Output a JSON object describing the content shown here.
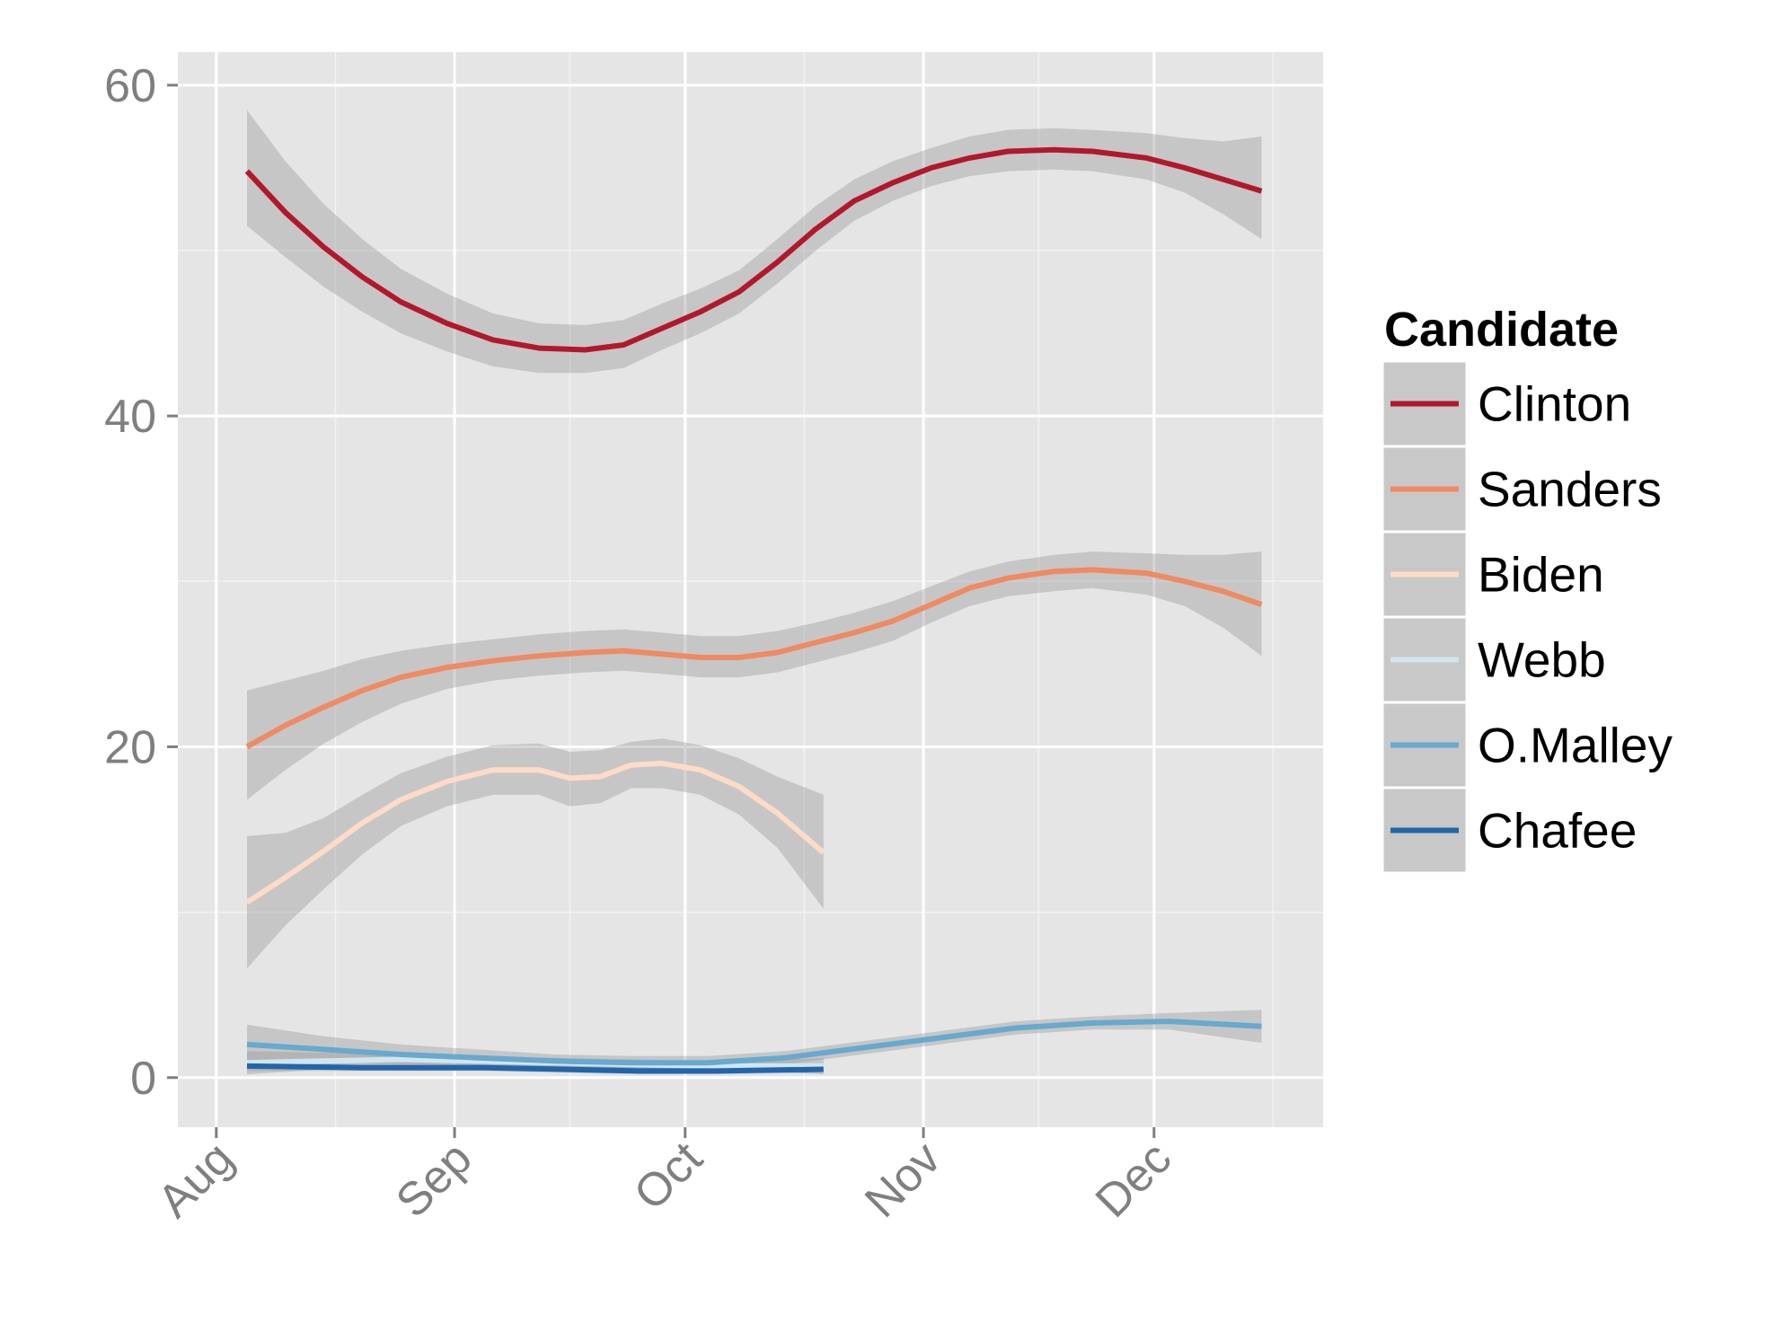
{
  "chart_data": {
    "type": "line",
    "title": "",
    "xlabel": "",
    "ylabel": "",
    "x_ticks": [
      {
        "label": "Aug",
        "date": "2015-08-01"
      },
      {
        "label": "Sep",
        "date": "2015-09-01"
      },
      {
        "label": "Oct",
        "date": "2015-10-01"
      },
      {
        "label": "Nov",
        "date": "2015-11-01"
      },
      {
        "label": "Dec",
        "date": "2015-12-01"
      }
    ],
    "y_ticks": [
      0,
      20,
      40,
      60
    ],
    "xlim": [
      "2015-07-27",
      "2015-12-23"
    ],
    "ylim": [
      -3,
      62
    ],
    "grid": true,
    "legend": {
      "title": "Candidate",
      "position": "right"
    },
    "series": [
      {
        "name": "Clinton",
        "color": "#b2182b",
        "points": [
          [
            "2015-08-05",
            54.8
          ],
          [
            "2015-08-10",
            52.3
          ],
          [
            "2015-08-15",
            50.2
          ],
          [
            "2015-08-20",
            48.4
          ],
          [
            "2015-08-25",
            46.9
          ],
          [
            "2015-08-31",
            45.6
          ],
          [
            "2015-09-06",
            44.6
          ],
          [
            "2015-09-12",
            44.1
          ],
          [
            "2015-09-18",
            44.0
          ],
          [
            "2015-09-23",
            44.3
          ],
          [
            "2015-09-28",
            45.3
          ],
          [
            "2015-10-03",
            46.3
          ],
          [
            "2015-10-08",
            47.5
          ],
          [
            "2015-10-13",
            49.3
          ],
          [
            "2015-10-18",
            51.3
          ],
          [
            "2015-10-23",
            53.0
          ],
          [
            "2015-10-28",
            54.1
          ],
          [
            "2015-11-02",
            55.0
          ],
          [
            "2015-11-07",
            55.6
          ],
          [
            "2015-11-12",
            56.0
          ],
          [
            "2015-11-18",
            56.1
          ],
          [
            "2015-11-23",
            56.0
          ],
          [
            "2015-11-30",
            55.6
          ],
          [
            "2015-12-05",
            55.0
          ],
          [
            "2015-12-10",
            54.3
          ],
          [
            "2015-12-15",
            53.6
          ]
        ],
        "band": [
          [
            51.5,
            58.5
          ],
          [
            49.6,
            55.4
          ],
          [
            47.8,
            52.8
          ],
          [
            46.3,
            50.7
          ],
          [
            45.0,
            48.9
          ],
          [
            43.9,
            47.4
          ],
          [
            43.0,
            46.2
          ],
          [
            42.6,
            45.6
          ],
          [
            42.6,
            45.5
          ],
          [
            42.9,
            45.8
          ],
          [
            44.0,
            46.8
          ],
          [
            45.0,
            47.7
          ],
          [
            46.2,
            48.8
          ],
          [
            48.0,
            50.7
          ],
          [
            50.0,
            52.7
          ],
          [
            51.8,
            54.3
          ],
          [
            53.0,
            55.4
          ],
          [
            53.9,
            56.2
          ],
          [
            54.5,
            56.9
          ],
          [
            54.8,
            57.3
          ],
          [
            54.9,
            57.4
          ],
          [
            54.8,
            57.3
          ],
          [
            54.3,
            57.1
          ],
          [
            53.5,
            56.8
          ],
          [
            52.2,
            56.6
          ],
          [
            50.7,
            56.9
          ]
        ]
      },
      {
        "name": "Sanders",
        "color": "#ef8a62",
        "points": [
          [
            "2015-08-05",
            20.0
          ],
          [
            "2015-08-10",
            21.3
          ],
          [
            "2015-08-15",
            22.4
          ],
          [
            "2015-08-20",
            23.4
          ],
          [
            "2015-08-25",
            24.2
          ],
          [
            "2015-08-31",
            24.8
          ],
          [
            "2015-09-06",
            25.2
          ],
          [
            "2015-09-12",
            25.5
          ],
          [
            "2015-09-18",
            25.7
          ],
          [
            "2015-09-23",
            25.8
          ],
          [
            "2015-09-28",
            25.6
          ],
          [
            "2015-10-03",
            25.4
          ],
          [
            "2015-10-08",
            25.4
          ],
          [
            "2015-10-13",
            25.7
          ],
          [
            "2015-10-18",
            26.3
          ],
          [
            "2015-10-23",
            26.9
          ],
          [
            "2015-10-28",
            27.6
          ],
          [
            "2015-11-02",
            28.6
          ],
          [
            "2015-11-07",
            29.6
          ],
          [
            "2015-11-12",
            30.2
          ],
          [
            "2015-11-18",
            30.6
          ],
          [
            "2015-11-23",
            30.7
          ],
          [
            "2015-11-30",
            30.5
          ],
          [
            "2015-12-05",
            30.0
          ],
          [
            "2015-12-10",
            29.4
          ],
          [
            "2015-12-15",
            28.6
          ]
        ],
        "band": [
          [
            16.8,
            23.4
          ],
          [
            18.6,
            24.0
          ],
          [
            20.2,
            24.6
          ],
          [
            21.5,
            25.3
          ],
          [
            22.6,
            25.8
          ],
          [
            23.5,
            26.2
          ],
          [
            24.0,
            26.5
          ],
          [
            24.3,
            26.8
          ],
          [
            24.5,
            27.0
          ],
          [
            24.6,
            27.1
          ],
          [
            24.4,
            26.9
          ],
          [
            24.2,
            26.7
          ],
          [
            24.2,
            26.7
          ],
          [
            24.5,
            27.0
          ],
          [
            25.1,
            27.5
          ],
          [
            25.7,
            28.1
          ],
          [
            26.4,
            28.8
          ],
          [
            27.5,
            29.7
          ],
          [
            28.5,
            30.6
          ],
          [
            29.1,
            31.2
          ],
          [
            29.4,
            31.6
          ],
          [
            29.6,
            31.8
          ],
          [
            29.2,
            31.7
          ],
          [
            28.5,
            31.6
          ],
          [
            27.2,
            31.6
          ],
          [
            25.5,
            31.8
          ]
        ]
      },
      {
        "name": "Biden",
        "color": "#fddbc7",
        "points": [
          [
            "2015-08-05",
            10.6
          ],
          [
            "2015-08-10",
            12.1
          ],
          [
            "2015-08-15",
            13.7
          ],
          [
            "2015-08-20",
            15.4
          ],
          [
            "2015-08-25",
            16.8
          ],
          [
            "2015-08-31",
            17.9
          ],
          [
            "2015-09-06",
            18.6
          ],
          [
            "2015-09-12",
            18.6
          ],
          [
            "2015-09-16",
            18.1
          ],
          [
            "2015-09-20",
            18.2
          ],
          [
            "2015-09-24",
            18.9
          ],
          [
            "2015-09-28",
            19.0
          ],
          [
            "2015-10-03",
            18.6
          ],
          [
            "2015-10-08",
            17.6
          ],
          [
            "2015-10-13",
            16.0
          ],
          [
            "2015-10-19",
            13.6
          ]
        ],
        "band": [
          [
            6.6,
            14.6
          ],
          [
            9.2,
            14.8
          ],
          [
            11.4,
            15.7
          ],
          [
            13.5,
            17.1
          ],
          [
            15.2,
            18.4
          ],
          [
            16.4,
            19.4
          ],
          [
            17.1,
            20.1
          ],
          [
            17.1,
            20.2
          ],
          [
            16.4,
            19.7
          ],
          [
            16.6,
            19.8
          ],
          [
            17.5,
            20.3
          ],
          [
            17.5,
            20.5
          ],
          [
            17.1,
            20.1
          ],
          [
            15.9,
            19.3
          ],
          [
            13.9,
            18.2
          ],
          [
            10.2,
            17.1
          ]
        ]
      },
      {
        "name": "Webb",
        "color": "#d1e5f0",
        "points": [
          [
            "2015-08-05",
            0.9
          ],
          [
            "2015-08-15",
            1.0
          ],
          [
            "2015-08-25",
            1.1
          ],
          [
            "2015-09-04",
            1.0
          ],
          [
            "2015-09-14",
            0.9
          ],
          [
            "2015-09-24",
            0.8
          ],
          [
            "2015-10-04",
            0.7
          ],
          [
            "2015-10-14",
            0.7
          ],
          [
            "2015-10-19",
            0.7
          ]
        ],
        "band": [
          [
            0.2,
            1.6
          ],
          [
            0.5,
            1.5
          ],
          [
            0.7,
            1.5
          ],
          [
            0.7,
            1.3
          ],
          [
            0.6,
            1.2
          ],
          [
            0.5,
            1.1
          ],
          [
            0.4,
            1.0
          ],
          [
            0.3,
            1.1
          ],
          [
            0.2,
            1.2
          ]
        ]
      },
      {
        "name": "O.Malley",
        "color": "#67a9cf",
        "points": [
          [
            "2015-08-05",
            2.0
          ],
          [
            "2015-08-15",
            1.7
          ],
          [
            "2015-08-25",
            1.4
          ],
          [
            "2015-09-04",
            1.2
          ],
          [
            "2015-09-14",
            1.0
          ],
          [
            "2015-09-24",
            0.9
          ],
          [
            "2015-10-04",
            0.9
          ],
          [
            "2015-10-14",
            1.2
          ],
          [
            "2015-10-24",
            1.8
          ],
          [
            "2015-11-03",
            2.4
          ],
          [
            "2015-11-13",
            3.0
          ],
          [
            "2015-11-23",
            3.3
          ],
          [
            "2015-12-03",
            3.4
          ],
          [
            "2015-12-15",
            3.1
          ]
        ],
        "band": [
          [
            0.8,
            3.2
          ],
          [
            0.9,
            2.5
          ],
          [
            0.8,
            2.0
          ],
          [
            0.7,
            1.7
          ],
          [
            0.6,
            1.4
          ],
          [
            0.5,
            1.3
          ],
          [
            0.5,
            1.3
          ],
          [
            0.8,
            1.6
          ],
          [
            1.4,
            2.2
          ],
          [
            2.0,
            2.8
          ],
          [
            2.6,
            3.4
          ],
          [
            2.9,
            3.7
          ],
          [
            2.9,
            3.9
          ],
          [
            2.1,
            4.1
          ]
        ]
      },
      {
        "name": "Chafee",
        "color": "#2166ac",
        "points": [
          [
            "2015-08-05",
            0.7
          ],
          [
            "2015-08-20",
            0.6
          ],
          [
            "2015-09-05",
            0.6
          ],
          [
            "2015-09-15",
            0.5
          ],
          [
            "2015-09-25",
            0.4
          ],
          [
            "2015-10-05",
            0.4
          ],
          [
            "2015-10-19",
            0.5
          ]
        ],
        "band": [
          [
            0.4,
            1.0
          ],
          [
            0.4,
            0.8
          ],
          [
            0.4,
            0.8
          ],
          [
            0.3,
            0.7
          ],
          [
            0.2,
            0.6
          ],
          [
            0.2,
            0.6
          ],
          [
            0.3,
            0.7
          ]
        ]
      }
    ]
  }
}
